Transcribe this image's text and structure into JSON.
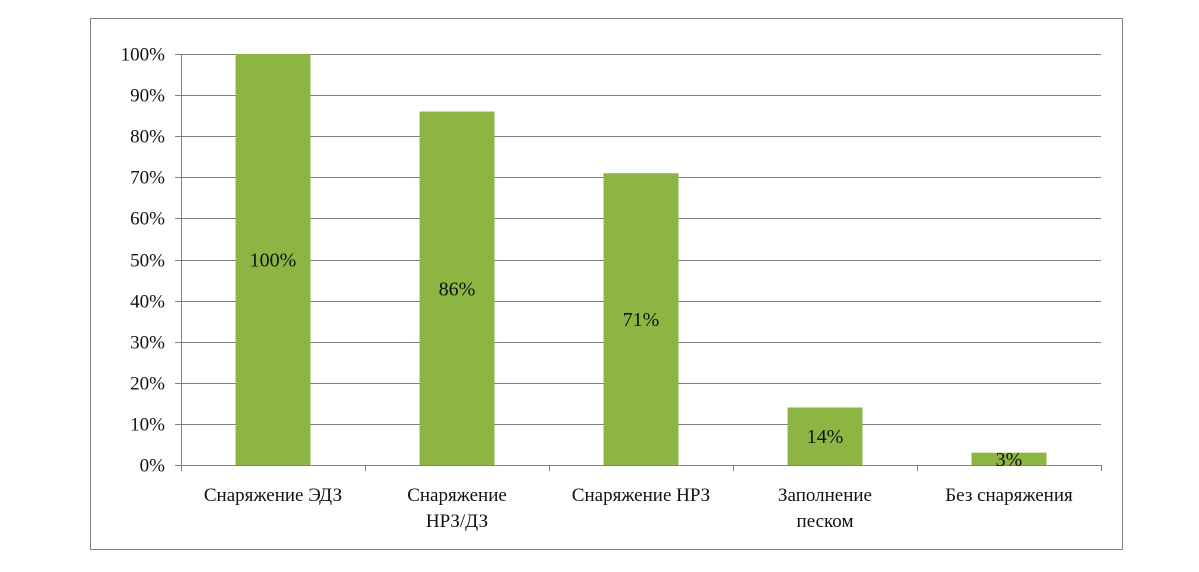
{
  "chart_data": {
    "type": "bar",
    "title": "",
    "xlabel": "",
    "ylabel": "",
    "categories": [
      [
        "Снаряжение ЭДЗ"
      ],
      [
        "Снаряжение",
        "НРЗ/ДЗ"
      ],
      [
        "Снаряжение НРЗ"
      ],
      [
        "Заполнение",
        "песком"
      ],
      [
        "Без снаряжения"
      ]
    ],
    "values": [
      100,
      86,
      71,
      14,
      3
    ],
    "data_labels": [
      "100%",
      "86%",
      "71%",
      "14%",
      "3%"
    ],
    "ylim": [
      0,
      100
    ],
    "yticks": [
      0,
      10,
      20,
      30,
      40,
      50,
      60,
      70,
      80,
      90,
      100
    ],
    "ytick_labels": [
      "0%",
      "10%",
      "20%",
      "30%",
      "40%",
      "50%",
      "60%",
      "70%",
      "80%",
      "90%",
      "100%"
    ],
    "grid": true,
    "legend": "none",
    "colors": {
      "bar": "#8db543",
      "grid": "#7f7f7f",
      "axis": "#7f7f7f",
      "frame": "#7f7f7f"
    }
  }
}
